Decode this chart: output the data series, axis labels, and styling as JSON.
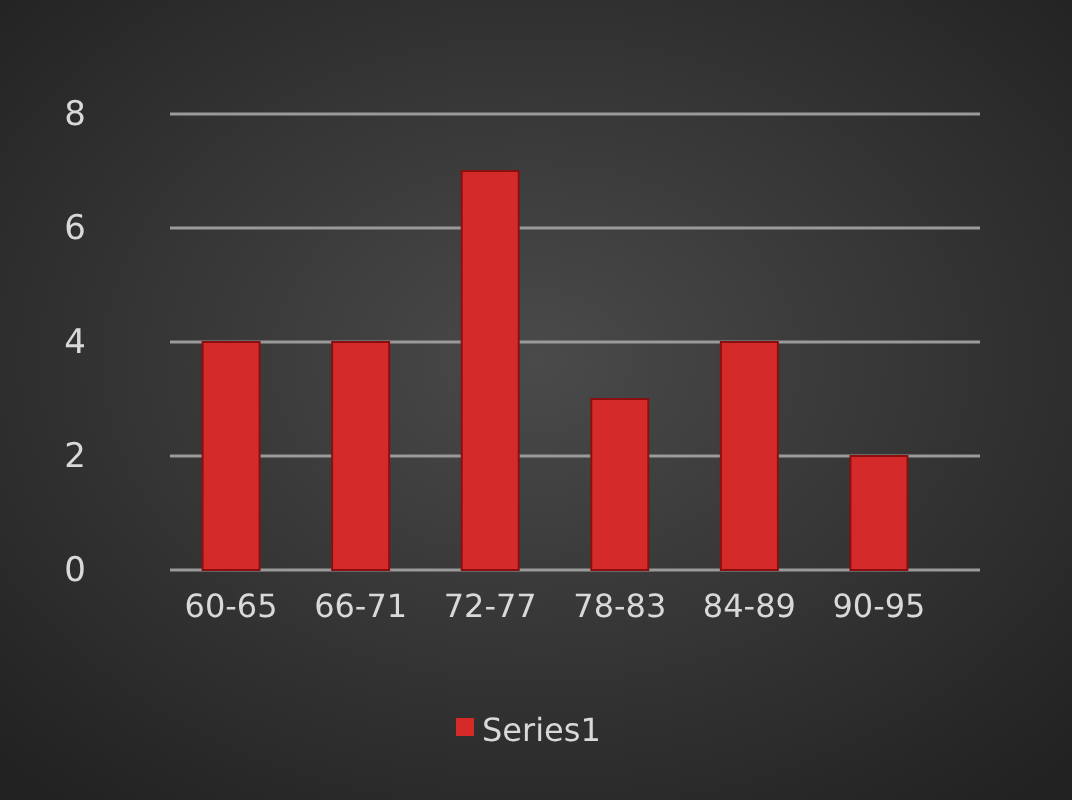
{
  "chart_data": {
    "type": "bar",
    "categories": [
      "60-65",
      "66-71",
      "72-77",
      "78-83",
      "84-89",
      "90-95"
    ],
    "series": [
      {
        "name": "Series1",
        "color": "#d42a2a",
        "values": [
          4,
          4,
          7,
          3,
          4,
          2
        ]
      }
    ],
    "ylim": [
      0,
      8
    ],
    "yticks": [
      0,
      2,
      4,
      6,
      8
    ],
    "grid": "y",
    "legend": "bottom"
  }
}
